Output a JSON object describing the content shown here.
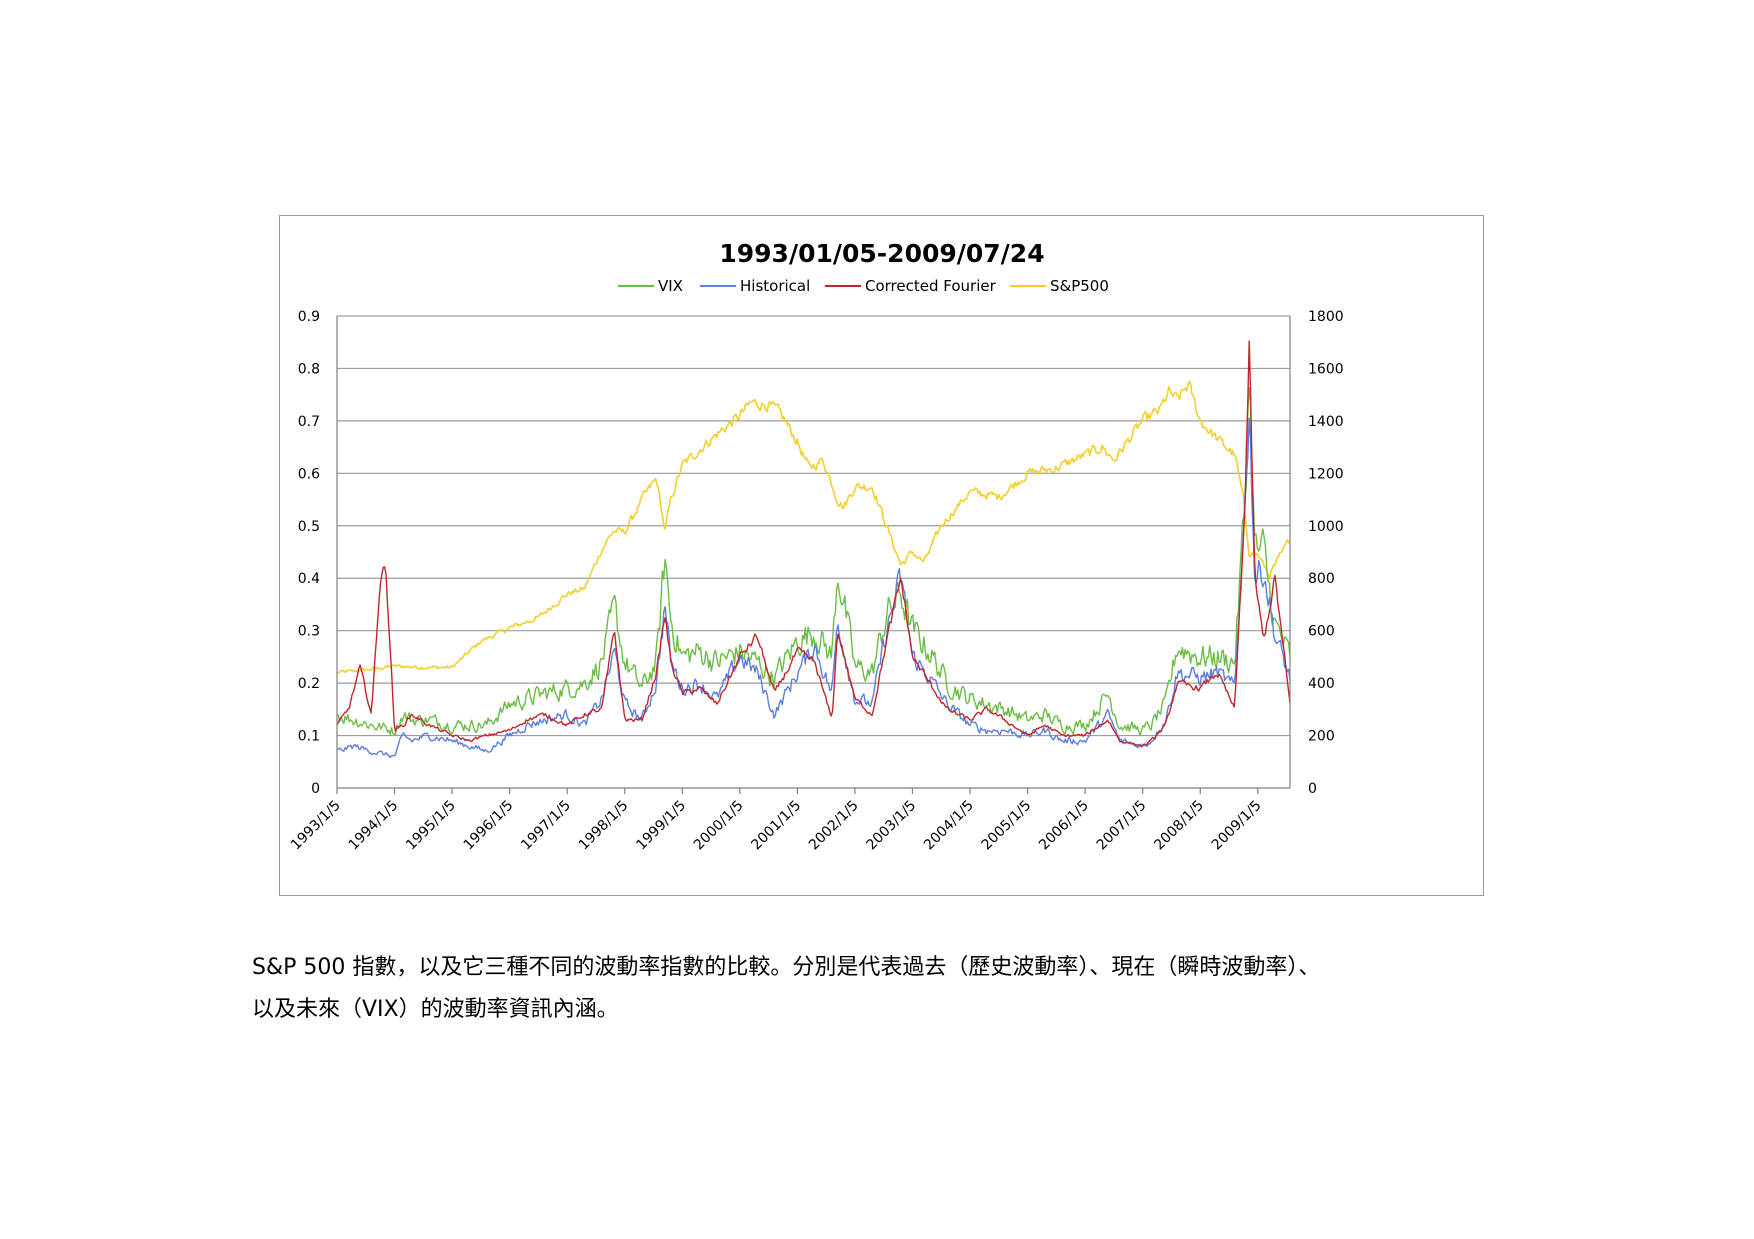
{
  "chart_data": {
    "type": "line",
    "title": "1993/01/05-2009/07/24",
    "xlabel": "",
    "ylabel": "",
    "x_tick_labels": [
      "1993/1/5",
      "1994/1/5",
      "1995/1/5",
      "1996/1/5",
      "1997/1/5",
      "1998/1/5",
      "1999/1/5",
      "2000/1/5",
      "2001/1/5",
      "2002/1/5",
      "2003/1/5",
      "2004/1/5",
      "2005/1/5",
      "2006/1/5",
      "2007/1/5",
      "2008/1/5",
      "2009/1/5"
    ],
    "xlim": [
      1993.0,
      2009.56
    ],
    "y_left": {
      "range": [
        0,
        0.9
      ],
      "ticks": [
        "0",
        "0.1",
        "0.2",
        "0.3",
        "0.4",
        "0.5",
        "0.6",
        "0.7",
        "0.8",
        "0.9"
      ]
    },
    "y_right": {
      "range": [
        0,
        1800
      ],
      "ticks": [
        "0",
        "200",
        "400",
        "600",
        "800",
        "1000",
        "1200",
        "1400",
        "1600",
        "1800"
      ]
    },
    "grid": "horizontal",
    "legend_position": "top",
    "series": [
      {
        "name": "VIX",
        "axis": "left",
        "color": "#6cbd45",
        "x": [
          1993.0,
          1993.3,
          1993.6,
          1994.0,
          1994.15,
          1994.3,
          1994.6,
          1995.0,
          1995.3,
          1995.6,
          1996.0,
          1996.3,
          1996.6,
          1997.0,
          1997.3,
          1997.6,
          1997.82,
          1998.0,
          1998.3,
          1998.55,
          1998.7,
          1998.8,
          1999.0,
          1999.3,
          1999.6,
          2000.0,
          2000.3,
          2000.6,
          2001.0,
          2001.3,
          2001.6,
          2001.7,
          2002.0,
          2002.3,
          2002.55,
          2002.8,
          2003.0,
          2003.3,
          2003.6,
          2004.0,
          2004.3,
          2004.6,
          2005.0,
          2005.3,
          2005.6,
          2006.0,
          2006.4,
          2006.6,
          2007.0,
          2007.15,
          2007.4,
          2007.6,
          2008.0,
          2008.3,
          2008.6,
          2008.78,
          2008.85,
          2008.95,
          2009.1,
          2009.3,
          2009.56
        ],
        "y": [
          0.14,
          0.13,
          0.12,
          0.11,
          0.14,
          0.13,
          0.13,
          0.12,
          0.12,
          0.12,
          0.16,
          0.17,
          0.18,
          0.19,
          0.2,
          0.24,
          0.34,
          0.24,
          0.19,
          0.24,
          0.44,
          0.32,
          0.25,
          0.26,
          0.24,
          0.26,
          0.24,
          0.21,
          0.28,
          0.3,
          0.25,
          0.42,
          0.23,
          0.22,
          0.33,
          0.37,
          0.3,
          0.26,
          0.2,
          0.17,
          0.16,
          0.15,
          0.13,
          0.14,
          0.12,
          0.12,
          0.18,
          0.12,
          0.11,
          0.12,
          0.16,
          0.27,
          0.25,
          0.25,
          0.24,
          0.55,
          0.8,
          0.45,
          0.45,
          0.31,
          0.25
        ]
      },
      {
        "name": "Historical",
        "axis": "left",
        "color": "#5b7fe0",
        "x": [
          1993.0,
          1993.3,
          1993.6,
          1994.0,
          1994.15,
          1994.3,
          1994.6,
          1995.0,
          1995.3,
          1995.6,
          1996.0,
          1996.3,
          1996.6,
          1997.0,
          1997.3,
          1997.6,
          1997.82,
          1998.0,
          1998.3,
          1998.55,
          1998.7,
          1998.8,
          1999.0,
          1999.3,
          1999.6,
          2000.0,
          2000.3,
          2000.6,
          2001.0,
          2001.3,
          2001.6,
          2001.7,
          2002.0,
          2002.3,
          2002.55,
          2002.8,
          2003.0,
          2003.3,
          2003.6,
          2004.0,
          2004.3,
          2004.6,
          2005.0,
          2005.3,
          2005.6,
          2006.0,
          2006.4,
          2006.6,
          2007.0,
          2007.15,
          2007.4,
          2007.6,
          2008.0,
          2008.3,
          2008.6,
          2008.78,
          2008.85,
          2008.95,
          2009.1,
          2009.3,
          2009.56
        ],
        "y": [
          0.07,
          0.08,
          0.07,
          0.06,
          0.1,
          0.09,
          0.1,
          0.09,
          0.08,
          0.07,
          0.1,
          0.12,
          0.13,
          0.14,
          0.12,
          0.17,
          0.26,
          0.16,
          0.13,
          0.2,
          0.35,
          0.24,
          0.19,
          0.2,
          0.17,
          0.25,
          0.22,
          0.14,
          0.22,
          0.27,
          0.18,
          0.32,
          0.17,
          0.16,
          0.3,
          0.4,
          0.25,
          0.21,
          0.16,
          0.12,
          0.11,
          0.11,
          0.1,
          0.11,
          0.09,
          0.09,
          0.14,
          0.09,
          0.08,
          0.09,
          0.13,
          0.22,
          0.21,
          0.22,
          0.19,
          0.55,
          0.74,
          0.4,
          0.42,
          0.29,
          0.21
        ]
      },
      {
        "name": "Corrected Fourier",
        "axis": "left",
        "color": "#c0262c",
        "x": [
          1993.0,
          1993.2,
          1993.4,
          1993.6,
          1993.75,
          1993.85,
          1994.0,
          1994.15,
          1994.3,
          1994.6,
          1995.0,
          1995.3,
          1995.6,
          1996.0,
          1996.3,
          1996.6,
          1997.0,
          1997.3,
          1997.6,
          1997.82,
          1998.0,
          1998.3,
          1998.55,
          1998.7,
          1998.8,
          1999.0,
          1999.3,
          1999.6,
          2000.0,
          2000.3,
          2000.6,
          2001.0,
          2001.3,
          2001.6,
          2001.7,
          2002.0,
          2002.3,
          2002.55,
          2002.8,
          2003.0,
          2003.3,
          2003.6,
          2004.0,
          2004.3,
          2004.6,
          2005.0,
          2005.3,
          2005.6,
          2006.0,
          2006.4,
          2006.6,
          2007.0,
          2007.15,
          2007.4,
          2007.6,
          2008.0,
          2008.3,
          2008.6,
          2008.78,
          2008.85,
          2008.95,
          2009.1,
          2009.3,
          2009.56
        ],
        "y": [
          0.12,
          0.15,
          0.23,
          0.14,
          0.4,
          0.42,
          0.11,
          0.12,
          0.14,
          0.12,
          0.1,
          0.09,
          0.1,
          0.11,
          0.13,
          0.14,
          0.12,
          0.14,
          0.15,
          0.3,
          0.13,
          0.13,
          0.22,
          0.33,
          0.24,
          0.18,
          0.19,
          0.16,
          0.25,
          0.29,
          0.18,
          0.26,
          0.24,
          0.13,
          0.3,
          0.17,
          0.14,
          0.28,
          0.4,
          0.25,
          0.2,
          0.15,
          0.13,
          0.15,
          0.13,
          0.1,
          0.12,
          0.1,
          0.1,
          0.13,
          0.09,
          0.08,
          0.09,
          0.12,
          0.2,
          0.19,
          0.22,
          0.15,
          0.55,
          0.84,
          0.4,
          0.28,
          0.4,
          0.16
        ]
      },
      {
        "name": "S&P500",
        "axis": "right",
        "color": "#f2cf2e",
        "x": [
          1993.0,
          1993.5,
          1994.0,
          1994.5,
          1995.0,
          1995.5,
          1996.0,
          1996.5,
          1997.0,
          1997.3,
          1997.6,
          1997.8,
          1998.0,
          1998.3,
          1998.55,
          1998.7,
          1998.8,
          1999.0,
          1999.5,
          2000.0,
          2000.2,
          2000.5,
          2000.7,
          2001.0,
          2001.2,
          2001.45,
          2001.7,
          2001.8,
          2002.0,
          2002.3,
          2002.55,
          2002.8,
          2003.0,
          2003.2,
          2003.5,
          2004.0,
          2004.5,
          2005.0,
          2005.5,
          2006.0,
          2006.3,
          2006.5,
          2007.0,
          2007.3,
          2007.45,
          2007.6,
          2007.8,
          2008.0,
          2008.3,
          2008.6,
          2008.75,
          2008.85,
          2009.0,
          2009.2,
          2009.56
        ],
        "y": [
          440,
          450,
          465,
          460,
          460,
          560,
          610,
          650,
          740,
          760,
          910,
          980,
          975,
          1100,
          1180,
          980,
          1100,
          1230,
          1330,
          1420,
          1470,
          1460,
          1430,
          1320,
          1220,
          1250,
          1100,
          1070,
          1150,
          1150,
          1000,
          850,
          900,
          860,
          1000,
          1130,
          1110,
          1200,
          1220,
          1270,
          1300,
          1250,
          1400,
          1440,
          1510,
          1480,
          1540,
          1400,
          1330,
          1270,
          1100,
          900,
          890,
          810,
          950
        ]
      }
    ]
  },
  "caption": {
    "line1": "S&P 500  指數，以及它三種不同的波動率指數的比較。分別是代表過去（歷史波動率）、現在（瞬時波動率）、",
    "line2": "以及未來（VIX）的波動率資訊內涵。"
  }
}
